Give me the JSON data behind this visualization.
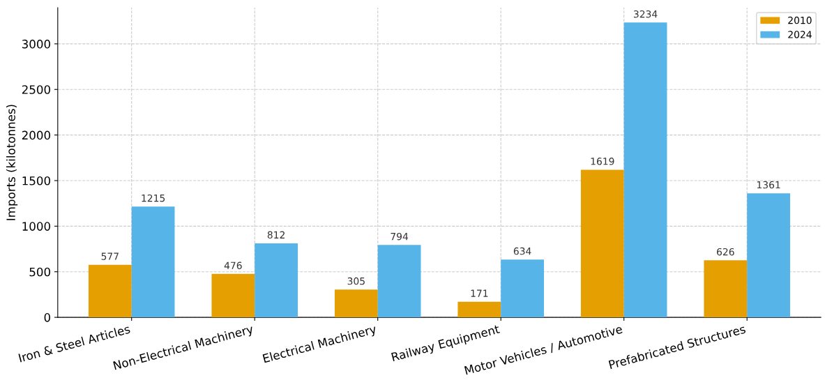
{
  "chart_data": {
    "type": "bar",
    "ylabel": "Imports (kilotonnes)",
    "categories": [
      "Iron & Steel Articles",
      "Non-Electrical Machinery",
      "Electrical Machinery",
      "Railway Equipment",
      "Motor Vehicles / Automotive",
      "Prefabricated Structures"
    ],
    "series": [
      {
        "name": "2010",
        "color": "#e69f00",
        "values": [
          577,
          476,
          305,
          171,
          1619,
          626
        ]
      },
      {
        "name": "2024",
        "color": "#56b4e9",
        "values": [
          1215,
          812,
          794,
          634,
          3234,
          1361
        ]
      }
    ],
    "ylim": [
      0,
      3396
    ],
    "yticks": [
      0,
      500,
      1000,
      1500,
      2000,
      2500,
      3000
    ],
    "data_labels": true,
    "grid": true,
    "legend": "top right"
  }
}
